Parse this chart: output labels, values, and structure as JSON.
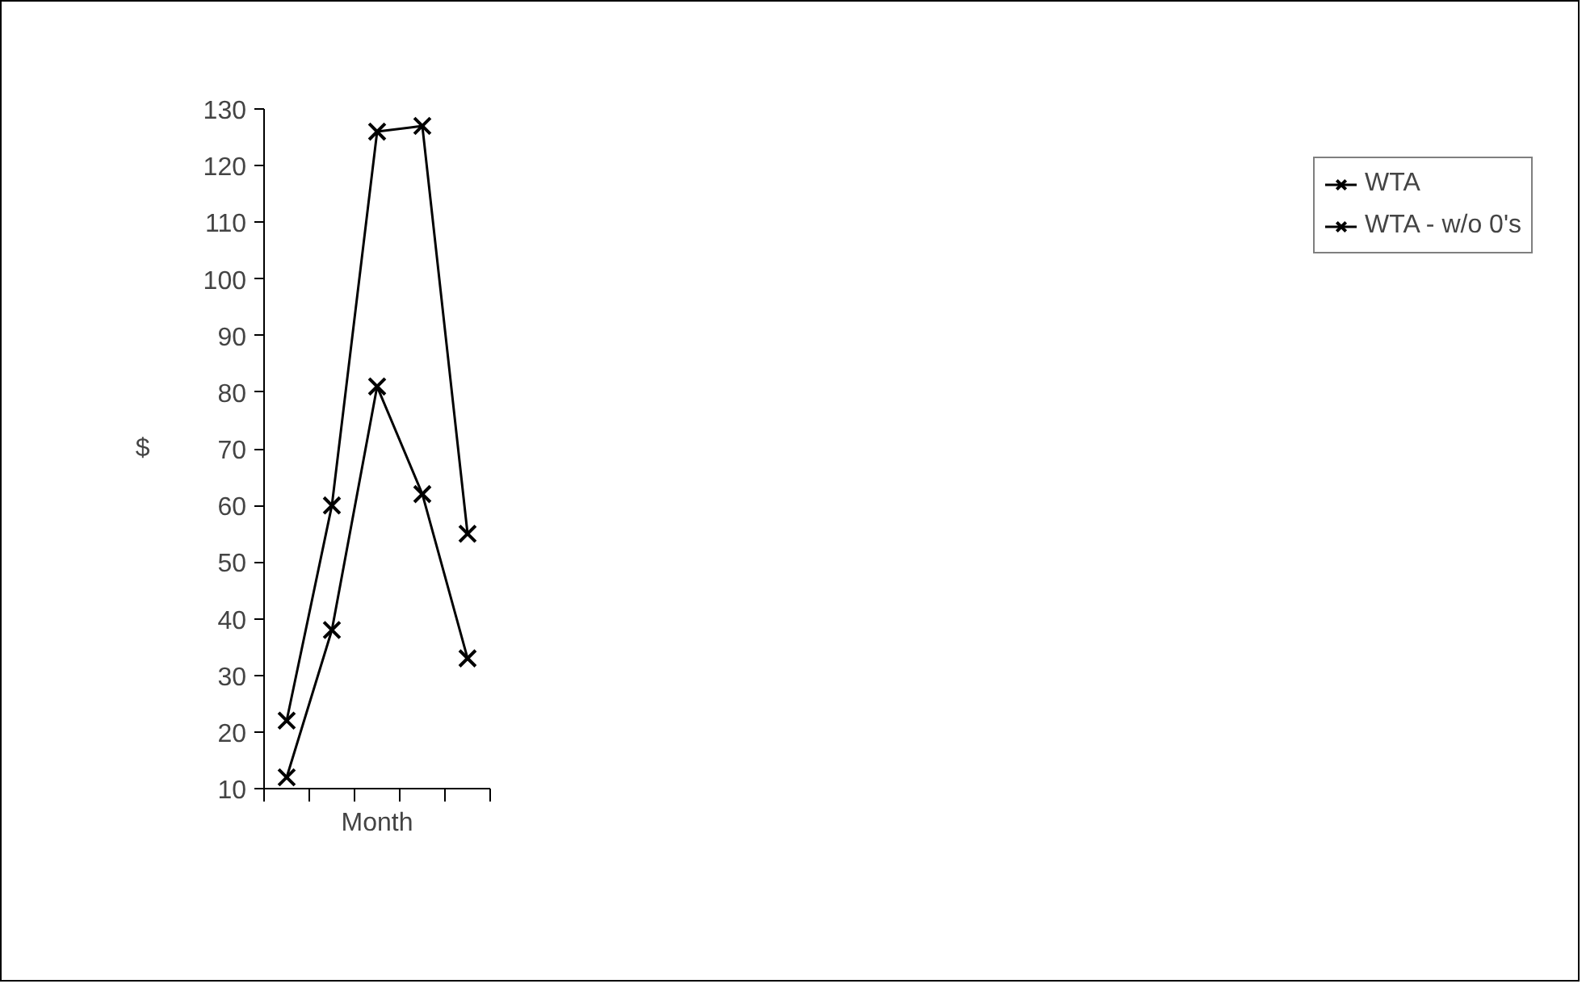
{
  "chart_data": {
    "type": "line",
    "xlabel": "Month",
    "ylabel": "$",
    "categories": [
      null,
      null,
      null,
      null,
      null
    ],
    "series": [
      {
        "name": "WTA",
        "color": "#000000",
        "values": [
          12,
          38,
          81,
          62,
          33
        ]
      },
      {
        "name": "WTA - w/o 0's",
        "color": "#000000",
        "values": [
          22,
          60,
          126,
          127,
          55
        ]
      }
    ],
    "ylim": [
      10,
      130
    ],
    "yticks": [
      10,
      20,
      30,
      40,
      50,
      60,
      70,
      80,
      90,
      100,
      110,
      120,
      130
    ],
    "tick_labels": "y",
    "grid": false,
    "legend": "top right",
    "marker": "cross",
    "line_style": "solid"
  }
}
